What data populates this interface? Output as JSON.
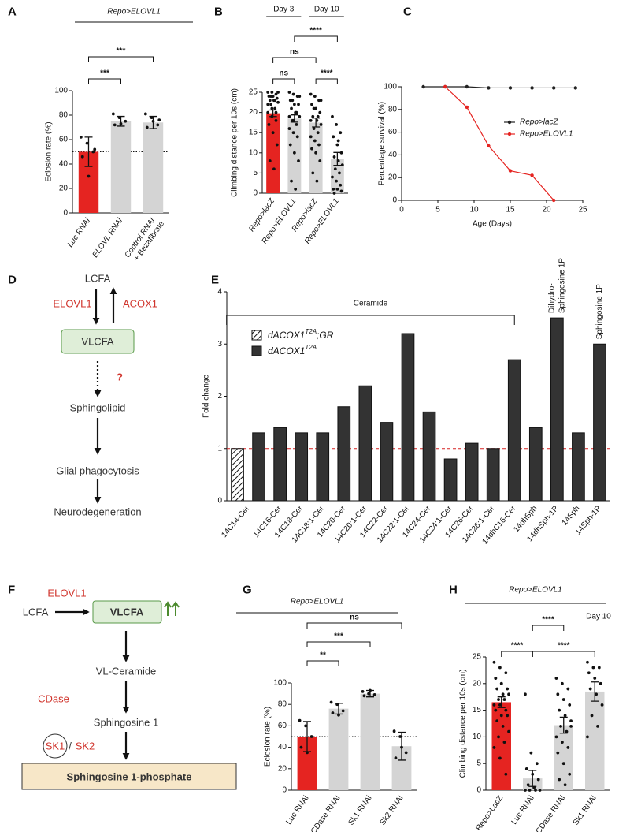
{
  "chart_data": [
    {
      "panel": "A",
      "type": "bar",
      "title": "Repo>ELOVL1",
      "title_italic": true,
      "ylabel": "Eclosion rate (%)",
      "categories": [
        "Luc RNAi",
        "ELOVL RNAi",
        "Control RNAi"
      ],
      "category_sublabels": [
        null,
        null,
        "+ Bezafibrate"
      ],
      "sublabel_color": "#1a9e3f",
      "italic_labels": true,
      "series": [
        {
          "values": [
            50,
            75,
            74
          ],
          "errors": [
            12,
            4,
            5
          ],
          "colors": [
            "#e52421",
            "#d4d4d4",
            "#d4d4d4"
          ],
          "points": [
            [
              62,
              57,
              50,
              46,
              30,
              52
            ],
            [
              81,
              78,
              75,
              72,
              73
            ],
            [
              81,
              78,
              72,
              70,
              75,
              76
            ]
          ]
        }
      ],
      "ylim": [
        0,
        100
      ],
      "yticks": [
        0,
        20,
        40,
        60,
        80,
        100
      ],
      "reference_line": 50,
      "comparisons": [
        {
          "label": "***",
          "from": 0,
          "to": 1
        },
        {
          "label": "***",
          "from": 0,
          "to": 2
        }
      ]
    },
    {
      "panel": "B",
      "type": "bar",
      "ylabel": "Climbing distance per 10s (cm)",
      "categories": [
        "Repo>lacZ",
        "Repo>ELOVL1",
        "Repo>lacZ",
        "Repo>ELOVL1"
      ],
      "italic_labels": true,
      "groups": [
        {
          "label": "Day 3",
          "from": 0,
          "to": 1
        },
        {
          "label": "Day 10",
          "from": 2,
          "to": 3
        }
      ],
      "series": [
        {
          "values": [
            19.8,
            18.5,
            17.5,
            8.5
          ],
          "errors": [
            0.8,
            0.9,
            1.1,
            1.6
          ],
          "colors": [
            "#e52421",
            "#d4d4d4",
            "#d4d4d4",
            "#d4d4d4"
          ],
          "points": [
            [
              25,
              25,
              24.5,
              24,
              24,
              23.5,
              23,
              23,
              22.5,
              22,
              21,
              20,
              19,
              18,
              17,
              15,
              12,
              8,
              6,
              25,
              24,
              23,
              22,
              21,
              20
            ],
            [
              25,
              24.5,
              24,
              23,
              22,
              22,
              21,
              20,
              19,
              18,
              17,
              16,
              15,
              14,
              12,
              10,
              8,
              3,
              1,
              24,
              23,
              20,
              19,
              18
            ],
            [
              24.5,
              24,
              23,
              22,
              21,
              20,
              19,
              18,
              17,
              16,
              15,
              14,
              13,
              12,
              11,
              10,
              8,
              5,
              3,
              23,
              21,
              19,
              18
            ],
            [
              19,
              17,
              15,
              14,
              12,
              10,
              9,
              8,
              7,
              6,
              5,
              4,
              3,
              2,
              1,
              1,
              0.5,
              0,
              13
            ]
          ]
        }
      ],
      "ylim": [
        0,
        25
      ],
      "yticks": [
        0,
        5,
        10,
        15,
        20,
        25
      ],
      "comparisons": [
        {
          "label": "ns",
          "from": 0,
          "to": 1
        },
        {
          "label": "****",
          "from": 2,
          "to": 3
        },
        {
          "label": "ns",
          "from": 0,
          "to": 2
        },
        {
          "label": "****",
          "from": 1,
          "to": 3
        }
      ]
    },
    {
      "panel": "C",
      "type": "line",
      "xlabel": "Age (Days)",
      "ylabel": "Percentage survival (%)",
      "series": [
        {
          "name": "Repo>lacZ",
          "color": "#222222",
          "x": [
            3,
            6,
            9,
            12,
            15,
            18,
            21,
            24
          ],
          "values": [
            100,
            100,
            100,
            99,
            99,
            99,
            99,
            99
          ]
        },
        {
          "name": "Repo>ELOVL1",
          "color": "#e52421",
          "x": [
            6,
            9,
            12,
            15,
            18,
            21
          ],
          "values": [
            100,
            82,
            48,
            26,
            22,
            0
          ]
        }
      ],
      "xlim": [
        0,
        25
      ],
      "xticks": [
        0,
        5,
        10,
        15,
        20,
        25
      ],
      "ylim": [
        0,
        100
      ],
      "yticks": [
        0,
        20,
        40,
        60,
        80,
        100
      ],
      "legend": "right"
    },
    {
      "panel": "E",
      "type": "bar",
      "ylabel": "Fold change",
      "categories": [
        "14C14-Cer",
        "14C16-Cer",
        "14C18-Cer",
        "14C18:1-Cer",
        "14C20-Cer",
        "14C20:1-Cer",
        "14C22-Cer",
        "14C22:1-Cer",
        "14C24-Cer",
        "14C24:1-Cer",
        "14C26-Cer",
        "14C26:1-Cer",
        "14dhC16-Cer",
        "14dhSph",
        "14dhSph-1P",
        "14Sph",
        "14Sph-1P"
      ],
      "series": [
        {
          "name": [
            "dACOX1",
            "T2A",
            ";GR"
          ],
          "color": "#ffffff",
          "pattern": "hatch",
          "values": [
            1,
            null,
            null,
            null,
            null,
            null,
            null,
            null,
            null,
            null,
            null,
            null,
            null,
            null,
            null,
            null,
            null
          ]
        },
        {
          "name": [
            "dACOX1",
            "T2A"
          ],
          "color": "#333333",
          "values": [
            1.3,
            1.4,
            1.3,
            1.3,
            1.8,
            2.2,
            1.5,
            3.2,
            1.7,
            0.8,
            1.1,
            1.0,
            2.7,
            1.4,
            3.5,
            1.3,
            3.0
          ]
        }
      ],
      "ylim": [
        0,
        4
      ],
      "yticks": [
        0,
        1,
        2,
        3,
        4
      ],
      "reference_line": 1,
      "reference_color": "#d62020",
      "legend": "upper left",
      "bracket": {
        "label": "Ceramide",
        "from": 0,
        "to": 12
      },
      "bar_labels": [
        {
          "label": [
            "Dihydro-",
            "Sphingosine 1P"
          ],
          "category": 14
        },
        {
          "label": [
            "Sphingosine 1P"
          ],
          "category": 16
        }
      ]
    },
    {
      "panel": "G",
      "type": "bar",
      "title": "Repo>ELOVL1",
      "title_italic": true,
      "ylabel": "Eclosion rate (%)",
      "categories": [
        "Luc RNAi",
        "CDase RNAi",
        "Sk1 RNAi",
        "Sk2 RNAi"
      ],
      "series": [
        {
          "values": [
            50,
            76,
            90,
            41
          ],
          "errors": [
            14,
            5,
            3,
            13
          ],
          "colors": [
            "#e52421",
            "#d4d4d4",
            "#d4d4d4",
            "#d4d4d4"
          ],
          "points": [
            [
              65,
              60,
              50,
              40,
              35
            ],
            [
              82,
              80,
              74,
              72,
              70
            ],
            [
              92,
              90,
              89,
              88,
              93
            ],
            [
              55,
              50,
              35,
              30,
              40
            ]
          ]
        }
      ],
      "ylim": [
        0,
        100
      ],
      "yticks": [
        0,
        20,
        40,
        60,
        80,
        100
      ],
      "reference_line": 50,
      "comparisons": [
        {
          "label": "**",
          "from": 0,
          "to": 1
        },
        {
          "label": "***",
          "from": 0,
          "to": 2
        },
        {
          "label": "ns",
          "from": 0,
          "to": 3
        }
      ]
    },
    {
      "panel": "H",
      "type": "bar",
      "title": "Repo>ELOVL1",
      "title_italic": true,
      "subtitle": "Day 10",
      "ylabel": "Climbing distance per 10s (cm)",
      "categories": [
        "Repo>LacZ",
        "Luc RNAi",
        "CDase RNAi",
        "Sk1 RNAi"
      ],
      "series": [
        {
          "values": [
            16.5,
            2.2,
            12.2,
            18.5
          ],
          "errors": [
            1,
            1.5,
            1.5,
            1.8
          ],
          "colors": [
            "#e52421",
            "#d4d4d4",
            "#d4d4d4",
            "#d4d4d4"
          ],
          "points": [
            [
              24,
              23,
              22,
              21,
              20,
              19,
              19,
              18,
              18,
              17,
              17,
              16,
              16,
              15,
              15,
              14,
              14,
              13,
              12,
              11,
              10,
              9,
              8,
              6,
              3,
              21,
              20
            ],
            [
              18,
              7,
              5,
              4,
              3,
              2,
              1,
              0.5,
              0,
              0,
              0,
              0
            ],
            [
              21,
              20,
              19,
              18,
              17,
              16,
              15,
              14,
              13,
              12,
              11,
              10,
              9,
              8,
              7,
              5,
              3,
              2,
              1,
              12
            ],
            [
              24,
              23,
              23,
              22,
              21,
              20,
              19,
              18,
              16,
              14,
              12,
              10
            ]
          ]
        }
      ],
      "ylim": [
        0,
        25
      ],
      "yticks": [
        0,
        5,
        10,
        15,
        20,
        25
      ],
      "comparisons": [
        {
          "label": "****",
          "from": 0,
          "to": 1
        },
        {
          "label": "****",
          "from": 1,
          "to": 3
        },
        {
          "label": "****",
          "from": 1,
          "to": 2
        }
      ]
    }
  ],
  "diagrams": [
    {
      "panel": "D",
      "nodes": [
        "LCFA",
        "VLCFA",
        "Sphingolipid",
        "Glial phagocytosis",
        "Neurodegeneration"
      ],
      "enzymes": [
        "ELOVL1",
        "ACOX1"
      ],
      "unknown": "?"
    },
    {
      "panel": "F",
      "nodes": [
        "LCFA",
        "VLCFA",
        "VL-Ceramide",
        "Sphingosine 1",
        "Sphingosine 1-phosphate"
      ],
      "enzymes": [
        "ELOVL1",
        "CDase",
        "SK1",
        "SK2"
      ],
      "separator": "/"
    }
  ]
}
